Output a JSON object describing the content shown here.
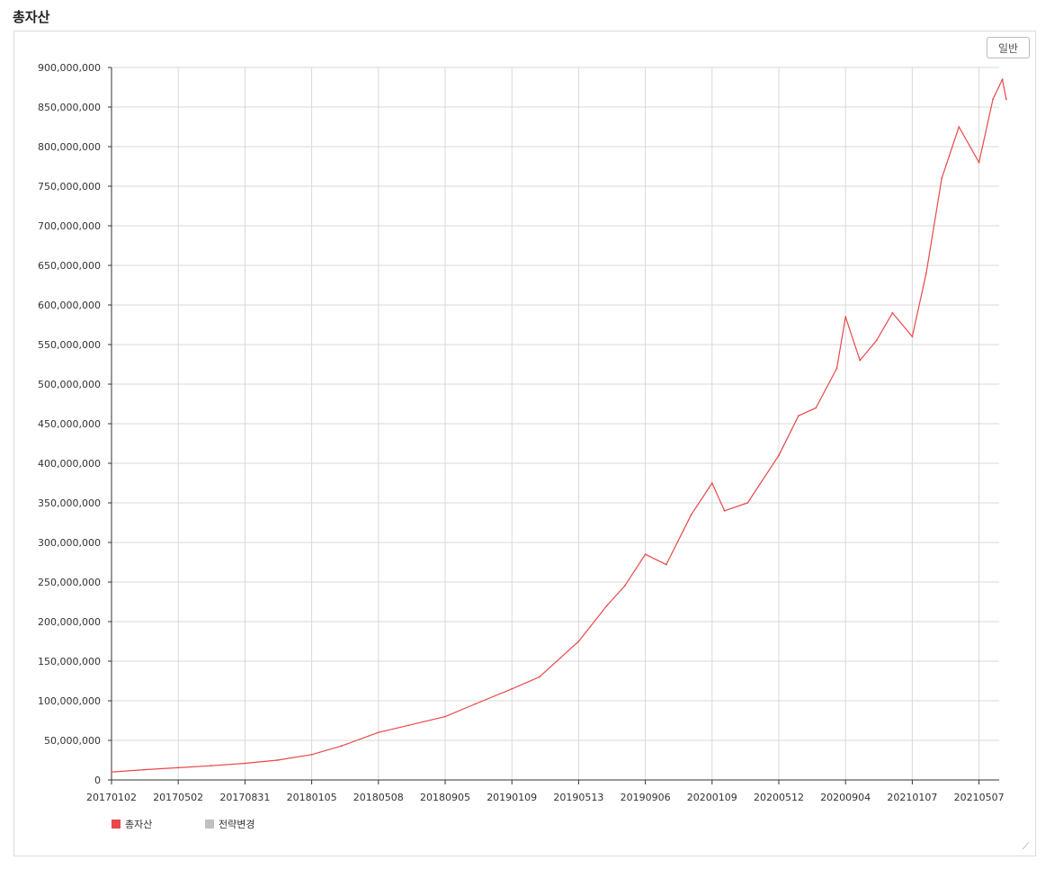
{
  "title": "총자산",
  "mode_button": "일반",
  "colors": {
    "series": "#e8484a",
    "strategy": "#c0c0c0",
    "grid": "#d9d9d9"
  },
  "chart_data": {
    "type": "line",
    "title": "총자산",
    "x_tick_labels": [
      "20170102",
      "20170502",
      "20170831",
      "20180105",
      "20180508",
      "20180905",
      "20190109",
      "20190513",
      "20190906",
      "20200109",
      "20200512",
      "20200904",
      "20210107",
      "20210507"
    ],
    "y_tick_labels": [
      "0",
      "50,000,000",
      "100,000,000",
      "150,000,000",
      "200,000,000",
      "250,000,000",
      "300,000,000",
      "350,000,000",
      "400,000,000",
      "450,000,000",
      "500,000,000",
      "550,000,000",
      "600,000,000",
      "650,000,000",
      "700,000,000",
      "750,000,000",
      "800,000,000",
      "850,000,000",
      "900,000,000"
    ],
    "ylim": [
      0,
      900000000
    ],
    "grid": true,
    "legend": [
      "총자산",
      "전략변경"
    ],
    "legend_position": "bottom-left",
    "series": [
      {
        "name": "총자산",
        "points": [
          [
            "20170102",
            10000000
          ],
          [
            "20170301",
            13000000
          ],
          [
            "20170502",
            15500000
          ],
          [
            "20170701",
            18000000
          ],
          [
            "20170831",
            21000000
          ],
          [
            "20171101",
            25000000
          ],
          [
            "20180105",
            32000000
          ],
          [
            "20180301",
            43000000
          ],
          [
            "20180508",
            60000000
          ],
          [
            "20180701",
            69000000
          ],
          [
            "20180905",
            80000000
          ],
          [
            "20181101",
            96000000
          ],
          [
            "20190109",
            115000000
          ],
          [
            "20190301",
            130000000
          ],
          [
            "20190513",
            175000000
          ],
          [
            "20190701",
            220000000
          ],
          [
            "20190801",
            245000000
          ],
          [
            "20190906",
            285000000
          ],
          [
            "20191015",
            272000000
          ],
          [
            "20191201",
            335000000
          ],
          [
            "20200109",
            375000000
          ],
          [
            "20200201",
            340000000
          ],
          [
            "20200315",
            350000000
          ],
          [
            "20200512",
            410000000
          ],
          [
            "20200615",
            460000000
          ],
          [
            "20200715",
            470000000
          ],
          [
            "20200820",
            520000000
          ],
          [
            "20200904",
            585000000
          ],
          [
            "20201001",
            530000000
          ],
          [
            "20201101",
            555000000
          ],
          [
            "20201201",
            590000000
          ],
          [
            "20210107",
            560000000
          ],
          [
            "20210201",
            640000000
          ],
          [
            "20210301",
            760000000
          ],
          [
            "20210401",
            825000000
          ],
          [
            "20210507",
            780000000
          ],
          [
            "20210601",
            860000000
          ],
          [
            "20210618",
            885000000
          ],
          [
            "20210625",
            860000000
          ]
        ]
      },
      {
        "name": "전략변경",
        "points": []
      }
    ]
  }
}
